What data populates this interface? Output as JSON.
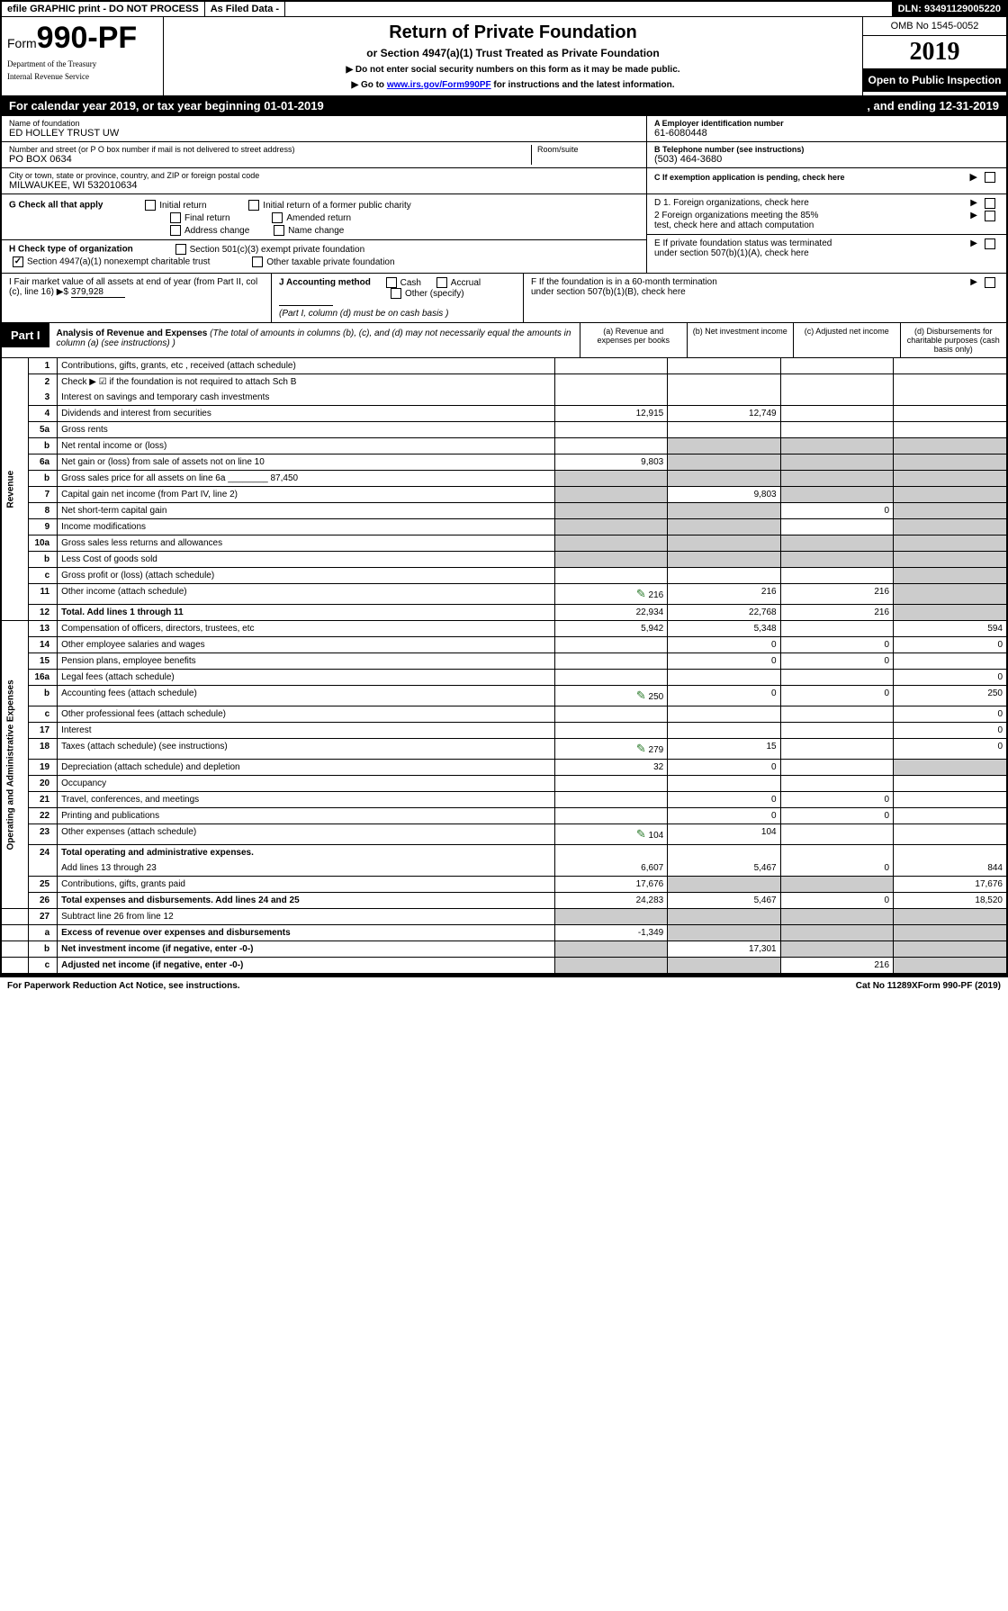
{
  "topbar": {
    "efile": "efile GRAPHIC print - DO NOT PROCESS",
    "asfiled": "As Filed Data -",
    "dln_label": "DLN:",
    "dln": "93491129005220"
  },
  "header": {
    "form_prefix": "Form",
    "form_number": "990-PF",
    "dept1": "Department of the Treasury",
    "dept2": "Internal Revenue Service",
    "title": "Return of Private Foundation",
    "subtitle": "or Section 4947(a)(1) Trust Treated as Private Foundation",
    "note1": "▶ Do not enter social security numbers on this form as it may be made public.",
    "note2_pre": "▶ Go to ",
    "note2_link": "www.irs.gov/Form990PF",
    "note2_post": " for instructions and the latest information.",
    "omb": "OMB No 1545-0052",
    "year": "2019",
    "open": "Open to Public Inspection"
  },
  "cal": {
    "line_a": "For calendar year 2019, or tax year beginning 01-01-2019",
    "line_b": ", and ending 12-31-2019"
  },
  "id": {
    "name_lbl": "Name of foundation",
    "name": "ED HOLLEY TRUST UW",
    "addr_lbl": "Number and street (or P O  box number if mail is not delivered to street address)",
    "room_lbl": "Room/suite",
    "addr": "PO BOX 0634",
    "city_lbl": "City or town, state or province, country, and ZIP or foreign postal code",
    "city": "MILWAUKEE, WI  532010634",
    "a_lbl": "A Employer identification number",
    "a_val": "61-6080448",
    "b_lbl": "B Telephone number (see instructions)",
    "b_val": "(503) 464-3680",
    "c_lbl": "C If exemption application is pending, check here"
  },
  "g": {
    "label": "G Check all that apply",
    "o1": "Initial return",
    "o2": "Initial return of a former public charity",
    "o3": "Final return",
    "o4": "Amended return",
    "o5": "Address change",
    "o6": "Name change"
  },
  "h": {
    "label": "H Check type of organization",
    "o1": "Section 501(c)(3) exempt private foundation",
    "o2": "Section 4947(a)(1) nonexempt charitable trust",
    "o3": "Other taxable private foundation"
  },
  "d": {
    "d1": "D 1. Foreign organizations, check here",
    "d2a": "2 Foreign organizations meeting the 85%",
    "d2b": "test, check here and attach computation",
    "e1": "E  If private foundation status was terminated",
    "e2": "under section 507(b)(1)(A), check here",
    "f1": "F  If the foundation is in a 60-month termination",
    "f2": "under section 507(b)(1)(B), check here"
  },
  "i": {
    "label": "I Fair market value of all assets at end of year (from Part II, col  (c), line 16) ▶$",
    "val": "379,928"
  },
  "j": {
    "label": "J Accounting method",
    "o1": "Cash",
    "o2": "Accrual",
    "o3": "Other (specify)",
    "note": "(Part I, column (d) must be on cash basis )"
  },
  "part1": {
    "label": "Part I",
    "title": "Analysis of Revenue and Expenses",
    "sub": " (The total of amounts in columns (b), (c), and (d) may not necessarily equal the amounts in column (a) (see instructions) )",
    "col_a": "(a) Revenue and expenses per books",
    "col_b": "(b) Net investment income",
    "col_c": "(c) Adjusted net income",
    "col_d": "(d) Disbursements for charitable purposes (cash basis only)"
  },
  "sidelabels": {
    "revenue": "Revenue",
    "expenses": "Operating and Administrative Expenses"
  },
  "rows": [
    {
      "n": "1",
      "d": "Contributions, gifts, grants, etc , received (attach schedule)"
    },
    {
      "n": "2",
      "d": "Check ▶ ☑ if the foundation is not required to attach Sch B",
      "nb": true
    },
    {
      "n": "3",
      "d": "Interest on savings and temporary cash investments"
    },
    {
      "n": "4",
      "d": "Dividends and interest from securities",
      "a": "12,915",
      "b": "12,749"
    },
    {
      "n": "5a",
      "d": "Gross rents"
    },
    {
      "n": "b",
      "d": "Net rental income or (loss)",
      "shadebcd": true
    },
    {
      "n": "6a",
      "d": "Net gain or (loss) from sale of assets not on line 10",
      "a": "9,803",
      "shadebcd": true
    },
    {
      "n": "b",
      "d": "Gross sales price for all assets on line 6a ________ 87,450",
      "shadeall": true
    },
    {
      "n": "7",
      "d": "Capital gain net income (from Part IV, line 2)",
      "b": "9,803",
      "shadea": true,
      "shadecd": true
    },
    {
      "n": "8",
      "d": "Net short-term capital gain",
      "c": "0",
      "shadeab": true,
      "shaded": true
    },
    {
      "n": "9",
      "d": "Income modifications",
      "shadeab": true,
      "shaded": true
    },
    {
      "n": "10a",
      "d": "Gross sales less returns and allowances",
      "shadeall": true
    },
    {
      "n": "b",
      "d": "Less  Cost of goods sold",
      "shadeall": true
    },
    {
      "n": "c",
      "d": "Gross profit or (loss) (attach schedule)",
      "shaded": true
    },
    {
      "n": "11",
      "d": "Other income (attach schedule)",
      "icon": true,
      "a": "216",
      "b": "216",
      "c": "216",
      "shaded": true
    },
    {
      "n": "12",
      "d": "Total. Add lines 1 through 11",
      "bold": true,
      "a": "22,934",
      "b": "22,768",
      "c": "216",
      "shaded": true
    }
  ],
  "exprows": [
    {
      "n": "13",
      "d": "Compensation of officers, directors, trustees, etc",
      "a": "5,942",
      "b": "5,348",
      "dd": "594"
    },
    {
      "n": "14",
      "d": "Other employee salaries and wages",
      "b": "0",
      "c": "0",
      "dd": "0"
    },
    {
      "n": "15",
      "d": "Pension plans, employee benefits",
      "b": "0",
      "c": "0"
    },
    {
      "n": "16a",
      "d": "Legal fees (attach schedule)",
      "dd": "0"
    },
    {
      "n": "b",
      "d": "Accounting fees (attach schedule)",
      "icon": true,
      "a": "250",
      "b": "0",
      "c": "0",
      "dd": "250"
    },
    {
      "n": "c",
      "d": "Other professional fees (attach schedule)",
      "dd": "0"
    },
    {
      "n": "17",
      "d": "Interest",
      "dd": "0"
    },
    {
      "n": "18",
      "d": "Taxes (attach schedule) (see instructions)",
      "icon": true,
      "a": "279",
      "b": "15",
      "dd": "0"
    },
    {
      "n": "19",
      "d": "Depreciation (attach schedule) and depletion",
      "a": "32",
      "b": "0",
      "shaded": true
    },
    {
      "n": "20",
      "d": "Occupancy"
    },
    {
      "n": "21",
      "d": "Travel, conferences, and meetings",
      "b": "0",
      "c": "0"
    },
    {
      "n": "22",
      "d": "Printing and publications",
      "b": "0",
      "c": "0"
    },
    {
      "n": "23",
      "d": "Other expenses (attach schedule)",
      "icon": true,
      "a": "104",
      "b": "104"
    },
    {
      "n": "24",
      "d": "Total operating and administrative expenses.",
      "bold": true,
      "nb": true
    },
    {
      "n": "",
      "d": "Add lines 13 through 23",
      "a": "6,607",
      "b": "5,467",
      "c": "0",
      "dd": "844"
    },
    {
      "n": "25",
      "d": "Contributions, gifts, grants paid",
      "a": "17,676",
      "shadebc": true,
      "dd": "17,676"
    },
    {
      "n": "26",
      "d": "Total expenses and disbursements. Add lines 24 and 25",
      "bold": true,
      "a": "24,283",
      "b": "5,467",
      "c": "0",
      "dd": "18,520"
    }
  ],
  "sumrows": [
    {
      "n": "27",
      "d": "Subtract line 26 from line 12",
      "shadeall": true
    },
    {
      "n": "a",
      "d": "Excess of revenue over expenses and disbursements",
      "bold": true,
      "a": "-1,349",
      "shadebcd": true
    },
    {
      "n": "b",
      "d": "Net investment income (if negative, enter -0-)",
      "bold": true,
      "b": "17,301",
      "shadea": true,
      "shadecd": true
    },
    {
      "n": "c",
      "d": "Adjusted net income (if negative, enter -0-)",
      "bold": true,
      "c": "216",
      "shadeab": true,
      "shaded": true
    }
  ],
  "footer": {
    "l": "For Paperwork Reduction Act Notice, see instructions.",
    "c": "Cat No 11289X",
    "r": "Form 990-PF (2019)"
  }
}
